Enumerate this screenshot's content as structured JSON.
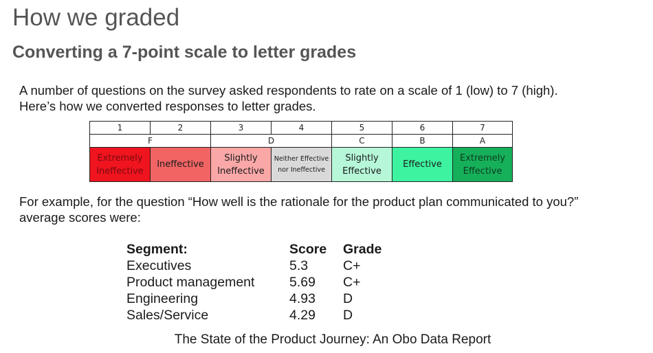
{
  "title": "How we graded",
  "subtitle": "Converting a 7-point scale to letter grades",
  "intro": {
    "line1": "A number of questions on the survey asked respondents to rate on a scale of 1 (low) to 7 (high).",
    "line2": "Here’s how we converted responses to letter grades."
  },
  "scale": {
    "numbers": [
      "1",
      "2",
      "3",
      "4",
      "5",
      "6",
      "7"
    ],
    "grades": [
      {
        "letter": "F",
        "span": 2
      },
      {
        "letter": "D",
        "span": 2
      },
      {
        "letter": "C",
        "span": 1
      },
      {
        "letter": "B",
        "span": 1
      },
      {
        "letter": "A",
        "span": 1
      }
    ],
    "labels": [
      {
        "line1": "Extremely",
        "line2": "Ineffective",
        "color": "#f0141e",
        "text": "#7a0a10"
      },
      {
        "line1": "Ineffective",
        "line2": "",
        "color": "#f26464",
        "text": "#1a1a1a"
      },
      {
        "line1": "Slightly",
        "line2": "Ineffective",
        "color": "#f9a7a7",
        "text": "#1a1a1a"
      },
      {
        "line1": "Neither Effective",
        "line2": "nor Ineffective",
        "color": "#d9d9d9",
        "text": "#1a1a1a"
      },
      {
        "line1": "Slightly",
        "line2": "Effective",
        "color": "#b6f7d8",
        "text": "#1a1a1a"
      },
      {
        "line1": "Effective",
        "line2": "",
        "color": "#3df3a0",
        "text": "#1a1a1a"
      },
      {
        "line1": "Extremely",
        "line2": "Effective",
        "color": "#16b05a",
        "text": "#0d3b20"
      }
    ]
  },
  "example": {
    "line1": "For example, for the question “How well is the rationale for the product plan communicated to you?”",
    "line2": "average scores were:"
  },
  "results": {
    "headers": {
      "segment": "Segment:",
      "score": "Score",
      "grade": "Grade"
    },
    "rows": [
      {
        "segment": "Executives",
        "score": "5.3",
        "grade": "C+"
      },
      {
        "segment": "Product management",
        "score": "5.69",
        "grade": "C+"
      },
      {
        "segment": "Engineering",
        "score": "4.93",
        "grade": "D"
      },
      {
        "segment": "Sales/Service",
        "score": "4.29",
        "grade": "D"
      }
    ]
  },
  "footer": "The State of the Product Journey: An Obo Data Report"
}
